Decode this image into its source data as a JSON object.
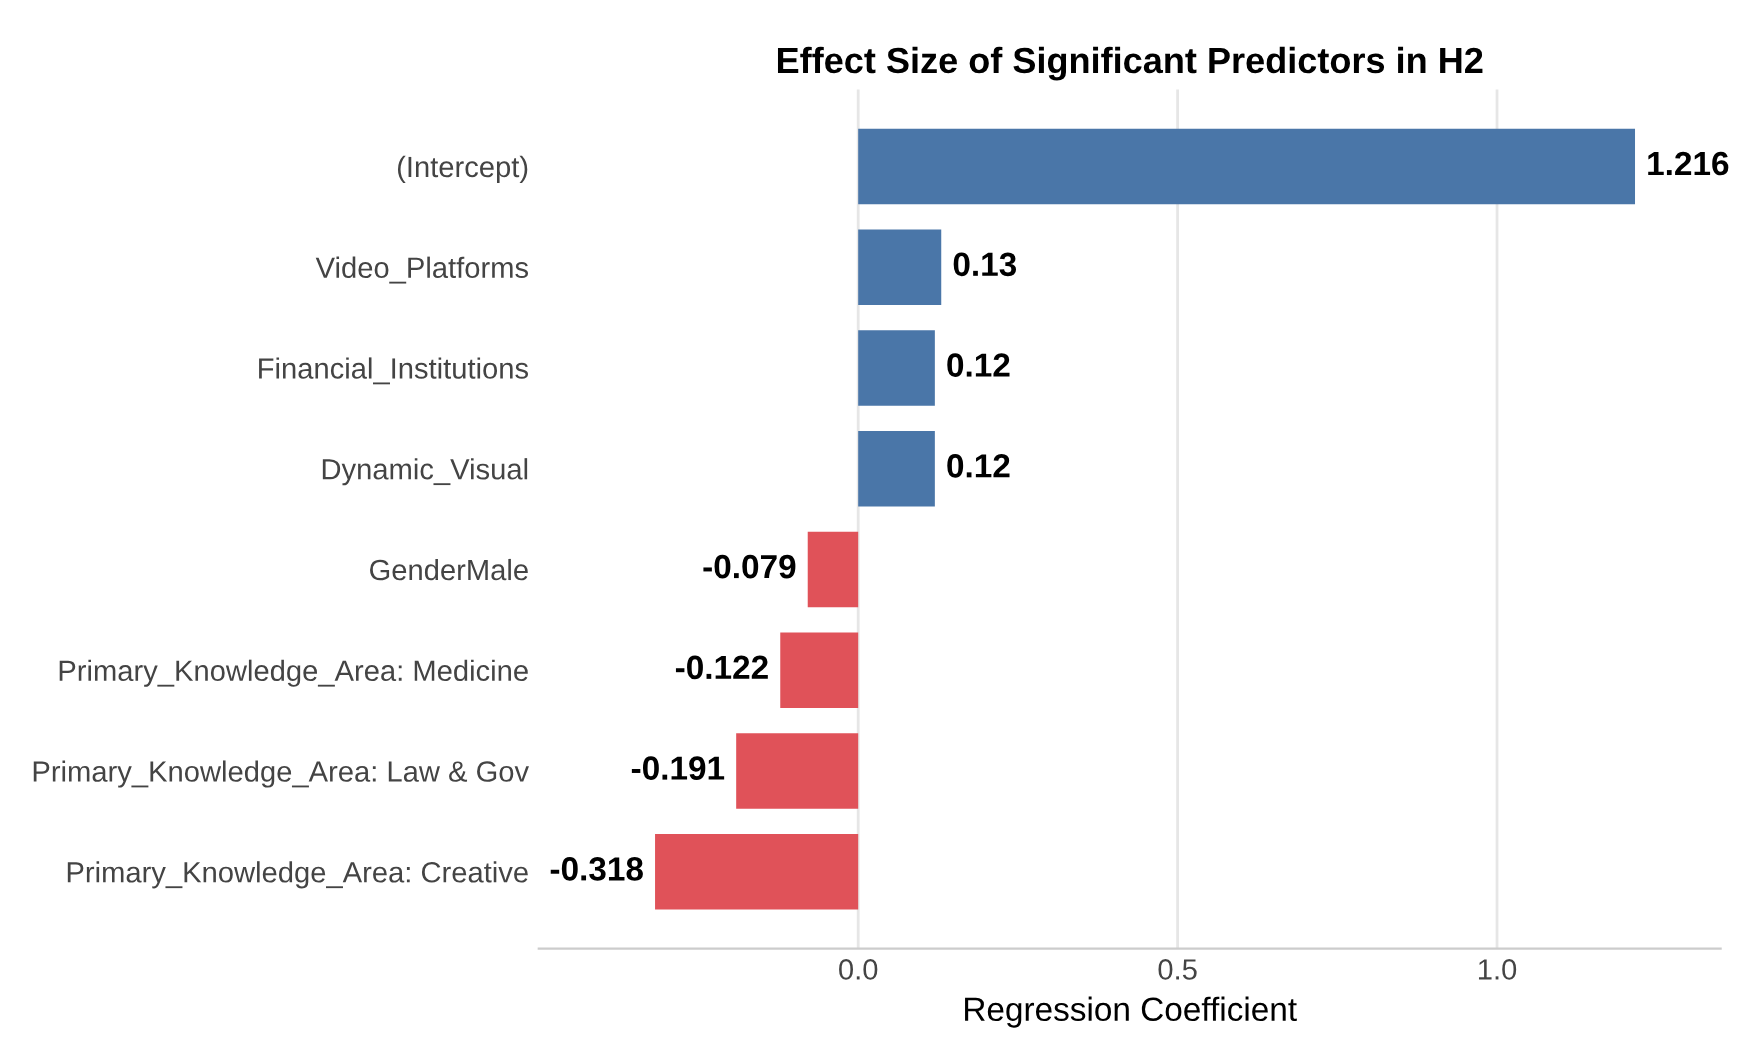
{
  "chart_data": {
    "type": "bar",
    "orientation": "horizontal",
    "title": "Effect Size of Significant Predictors in H2",
    "xlabel": "Regression Coefficient",
    "categories": [
      "(Intercept)",
      "Video_Platforms",
      "Financial_Institutions",
      "Dynamic_Visual",
      "GenderMale",
      "Primary_Knowledge_Area: Medicine",
      "Primary_Knowledge_Area: Law & Gov",
      "Primary_Knowledge_Area: Creative"
    ],
    "values": [
      1.216,
      0.13,
      0.12,
      0.12,
      -0.079,
      -0.122,
      -0.191,
      -0.318
    ],
    "colors": [
      "#4a76a8",
      "#4a76a8",
      "#4a76a8",
      "#4a76a8",
      "#e05259",
      "#e05259",
      "#e05259",
      "#e05259"
    ],
    "data_labels": true,
    "xlim": [
      -0.5,
      1.35
    ],
    "xticks": [
      {
        "value": 0,
        "label": "0.0"
      },
      0.5,
      {
        "value": 1,
        "label": "1.0"
      }
    ],
    "grid": "x",
    "legend": false
  }
}
